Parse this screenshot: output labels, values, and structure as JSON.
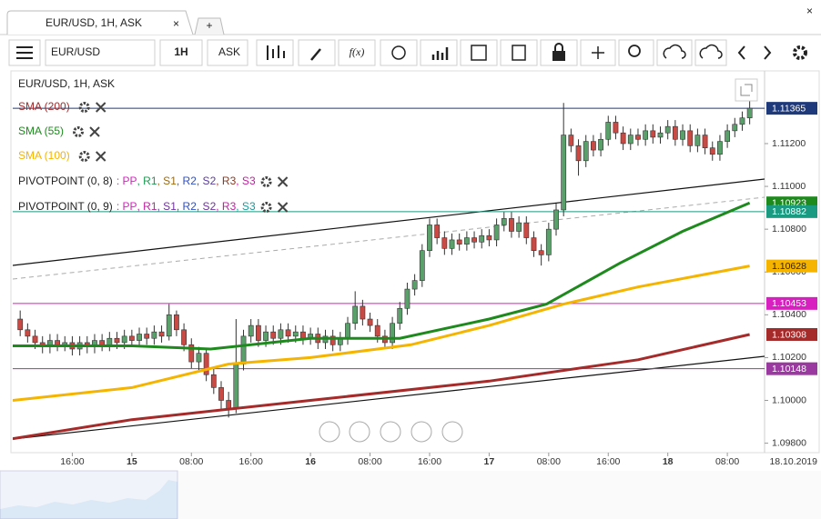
{
  "tab": {
    "title": "EUR/USD, 1H, ASK",
    "add": "+"
  },
  "toolbar": {
    "symbol": "EUR/USD",
    "interval": "1H",
    "price": "ASK",
    "function": "f(x)"
  },
  "chart_data": {
    "type": "candlestick",
    "title": "EUR/USD, 1H, ASK",
    "date_label": "18.10.2019",
    "up_color": "#59a06b",
    "down_color": "#c94a44",
    "xlim": [
      -16,
      85
    ],
    "ylim": [
      1.0976,
      1.1151
    ],
    "xticks": [
      {
        "value": -8,
        "label": "16:00"
      },
      {
        "value": 0,
        "label": "15"
      },
      {
        "value": 8,
        "label": "08:00"
      },
      {
        "value": 16,
        "label": "16:00"
      },
      {
        "value": 24,
        "label": "16"
      },
      {
        "value": 32,
        "label": "08:00"
      },
      {
        "value": 40,
        "label": "16:00"
      },
      {
        "value": 48,
        "label": "17"
      },
      {
        "value": 56,
        "label": "08:00"
      },
      {
        "value": 64,
        "label": "16:00"
      },
      {
        "value": 72,
        "label": "18"
      },
      {
        "value": 80,
        "label": "08:00"
      }
    ],
    "yticks": [
      {
        "value": 1.098,
        "label": "1.09800"
      },
      {
        "value": 1.1,
        "label": "1.10000"
      },
      {
        "value": 1.102,
        "label": "1.10200"
      },
      {
        "value": 1.104,
        "label": "1.10400"
      },
      {
        "value": 1.106,
        "label": "1.10600"
      },
      {
        "value": 1.108,
        "label": "1.10800"
      },
      {
        "value": 1.11,
        "label": "1.11000"
      },
      {
        "value": 1.112,
        "label": "1.11200"
      }
    ],
    "grid": false,
    "x": [
      -15,
      -14,
      -13,
      -12,
      -11,
      -10,
      -9,
      -8,
      -7,
      -6,
      -5,
      -4,
      -3,
      -2,
      -1,
      0,
      1,
      2,
      3,
      4,
      5,
      6,
      7,
      8,
      9,
      10,
      11,
      12,
      13,
      14,
      15,
      16,
      17,
      18,
      19,
      20,
      21,
      22,
      23,
      24,
      25,
      26,
      27,
      28,
      29,
      30,
      31,
      32,
      33,
      34,
      35,
      36,
      37,
      38,
      39,
      40,
      41,
      42,
      43,
      44,
      45,
      46,
      47,
      48,
      49,
      50,
      51,
      52,
      53,
      54,
      55,
      56,
      57,
      58,
      59,
      60,
      61,
      62,
      63,
      64,
      65,
      66,
      67,
      68,
      69,
      70,
      71,
      72,
      73,
      74,
      75,
      76,
      77,
      78,
      79,
      80,
      81,
      82,
      83
    ],
    "open": [
      1.1038,
      1.1033,
      1.103,
      1.1027,
      1.1025,
      1.1028,
      1.1026,
      1.1027,
      1.1024,
      1.1027,
      1.1025,
      1.1028,
      1.1026,
      1.1029,
      1.1027,
      1.103,
      1.1028,
      1.1031,
      1.1029,
      1.1032,
      1.103,
      1.104,
      1.1033,
      1.1026,
      1.1018,
      1.1022,
      1.1012,
      1.1006,
      1.1,
      1.0996,
      1.1017,
      1.103,
      1.1035,
      1.1028,
      1.1032,
      1.1029,
      1.1033,
      1.103,
      1.1032,
      1.1029,
      1.1031,
      1.1027,
      1.103,
      1.1026,
      1.1029,
      1.1036,
      1.1044,
      1.1038,
      1.1035,
      1.103,
      1.1027,
      1.1036,
      1.1043,
      1.1052,
      1.1056,
      1.107,
      1.1082,
      1.1076,
      1.1071,
      1.1075,
      1.1073,
      1.1076,
      1.1074,
      1.1077,
      1.1075,
      1.1082,
      1.1085,
      1.1079,
      1.1083,
      1.1076,
      1.107,
      1.1068,
      1.108,
      1.1089,
      1.1124,
      1.1119,
      1.1112,
      1.1121,
      1.1117,
      1.1122,
      1.113,
      1.1125,
      1.112,
      1.1124,
      1.1122,
      1.1126,
      1.1123,
      1.1125,
      1.1128,
      1.1122,
      1.1126,
      1.1119,
      1.1124,
      1.1118,
      1.1115,
      1.1121,
      1.1126,
      1.1129,
      1.1132
    ],
    "high": [
      1.1042,
      1.1036,
      1.1033,
      1.103,
      1.1031,
      1.1031,
      1.103,
      1.103,
      1.103,
      1.103,
      1.1031,
      1.1031,
      1.1032,
      1.1032,
      1.1033,
      1.1033,
      1.1034,
      1.1034,
      1.1035,
      1.1035,
      1.1045,
      1.1042,
      1.1036,
      1.1029,
      1.1025,
      1.1024,
      1.1015,
      1.1009,
      1.1004,
      1.1038,
      1.1033,
      1.1038,
      1.1038,
      1.1035,
      1.1035,
      1.1036,
      1.1036,
      1.1035,
      1.1035,
      1.1034,
      1.1034,
      1.1033,
      1.1033,
      1.1032,
      1.1039,
      1.1051,
      1.1047,
      1.1041,
      1.1038,
      1.1033,
      1.1039,
      1.1046,
      1.1055,
      1.1059,
      1.1073,
      1.1085,
      1.1085,
      1.1079,
      1.1078,
      1.1078,
      1.1079,
      1.1079,
      1.108,
      1.108,
      1.1085,
      1.1088,
      1.1088,
      1.1086,
      1.1086,
      1.1079,
      1.1073,
      1.1083,
      1.1092,
      1.1139,
      1.1127,
      1.1122,
      1.1124,
      1.1124,
      1.1125,
      1.1133,
      1.1133,
      1.1128,
      1.1127,
      1.1127,
      1.1129,
      1.1129,
      1.1128,
      1.1131,
      1.1131,
      1.1129,
      1.1129,
      1.1127,
      1.1127,
      1.1121,
      1.1124,
      1.1129,
      1.1132,
      1.1135,
      1.114
    ],
    "low": [
      1.103,
      1.1027,
      1.1024,
      1.1022,
      1.1022,
      1.1023,
      1.1023,
      1.1021,
      1.1021,
      1.1022,
      1.1022,
      1.1023,
      1.1023,
      1.1024,
      1.1024,
      1.1025,
      1.1025,
      1.1026,
      1.1026,
      1.1027,
      1.1028,
      1.103,
      1.1023,
      1.1015,
      1.1014,
      1.1009,
      1.1003,
      1.0996,
      1.0992,
      1.0994,
      1.1014,
      1.1027,
      1.1025,
      1.1025,
      1.1026,
      1.1026,
      1.1027,
      1.1027,
      1.1026,
      1.1026,
      1.1024,
      1.1024,
      1.1023,
      1.1023,
      1.1026,
      1.1033,
      1.1035,
      1.1032,
      1.1027,
      1.1024,
      1.1024,
      1.1033,
      1.104,
      1.1049,
      1.1053,
      1.1067,
      1.1073,
      1.1068,
      1.1068,
      1.107,
      1.107,
      1.1071,
      1.1071,
      1.1072,
      1.1072,
      1.1079,
      1.1076,
      1.1076,
      1.1073,
      1.1067,
      1.1063,
      1.1065,
      1.1077,
      1.1086,
      1.1116,
      1.1105,
      1.1109,
      1.1114,
      1.1114,
      1.1119,
      1.1122,
      1.1117,
      1.1117,
      1.1119,
      1.1119,
      1.112,
      1.112,
      1.1122,
      1.1119,
      1.1119,
      1.1116,
      1.1116,
      1.1115,
      1.1112,
      1.1112,
      1.1118,
      1.1123,
      1.1126,
      1.1129
    ],
    "close": [
      1.1033,
      1.103,
      1.1027,
      1.1025,
      1.1028,
      1.1026,
      1.1027,
      1.1024,
      1.1027,
      1.1025,
      1.1028,
      1.1026,
      1.1029,
      1.1027,
      1.103,
      1.1028,
      1.1031,
      1.1029,
      1.1032,
      1.103,
      1.104,
      1.1033,
      1.1026,
      1.1018,
      1.1022,
      1.1012,
      1.1006,
      1.1,
      1.0996,
      1.1017,
      1.103,
      1.1035,
      1.1028,
      1.1032,
      1.1029,
      1.1033,
      1.103,
      1.1032,
      1.1029,
      1.1031,
      1.1027,
      1.103,
      1.1026,
      1.1029,
      1.1036,
      1.1044,
      1.1038,
      1.1035,
      1.103,
      1.1027,
      1.1036,
      1.1043,
      1.1052,
      1.1056,
      1.107,
      1.1082,
      1.1076,
      1.1071,
      1.1075,
      1.1073,
      1.1076,
      1.1074,
      1.1077,
      1.1075,
      1.1082,
      1.1085,
      1.1079,
      1.1083,
      1.1076,
      1.107,
      1.1068,
      1.108,
      1.1089,
      1.1124,
      1.1119,
      1.1112,
      1.1121,
      1.1117,
      1.1122,
      1.113,
      1.1125,
      1.112,
      1.1124,
      1.1122,
      1.1126,
      1.1123,
      1.1125,
      1.1128,
      1.1122,
      1.1126,
      1.1119,
      1.1124,
      1.1118,
      1.1115,
      1.1121,
      1.1126,
      1.1129,
      1.1132,
      1.11365
    ],
    "series": [
      {
        "name": "SMA (200)",
        "color": "#a52a2a",
        "x": [
          -16,
          0,
          24,
          48,
          68,
          83
        ],
        "values": [
          1.09821,
          1.0991,
          1.1,
          1.1009,
          1.1019,
          1.10308
        ]
      },
      {
        "name": "SMA (55)",
        "color": "#1e8a1e",
        "x": [
          -16,
          0,
          10.6,
          24,
          36,
          48,
          55.7,
          65.5,
          74,
          83
        ],
        "values": [
          1.10255,
          1.10255,
          1.1024,
          1.1029,
          1.1029,
          1.1038,
          1.1045,
          1.1064,
          1.1079,
          1.10923
        ]
      },
      {
        "name": "SMA (100)",
        "color": "#f5b400",
        "x": [
          -16,
          0,
          13,
          24,
          37.5,
          48,
          58,
          68,
          83
        ],
        "values": [
          1.1,
          1.1006,
          1.1017,
          1.102,
          1.1026,
          1.1035,
          1.1045,
          1.1053,
          1.10628
        ]
      }
    ],
    "pivots": [
      {
        "name": "PIVOTPOINT (0, 8)",
        "parts": [
          {
            "text": ": PP",
            "color": "#d81fc0"
          },
          {
            "text": ", R1",
            "color": "#1a9a50"
          },
          {
            "text": ", S1",
            "color": "#9a6a10"
          },
          {
            "text": ", R2",
            "color": "#3050c0"
          },
          {
            "text": ", S2",
            "color": "#5a3aa0"
          },
          {
            "text": ", R3",
            "color": "#8a3a20"
          },
          {
            "text": ", S3",
            "color": "#c020a0"
          }
        ]
      },
      {
        "name": "PIVOTPOINT (0, 9)",
        "parts": [
          {
            "text": ": PP",
            "color": "#d81fc0"
          },
          {
            "text": ", R1",
            "color": "#c020a0"
          },
          {
            "text": ", S1",
            "color": "#7030a0"
          },
          {
            "text": ", R2",
            "color": "#3050c0"
          },
          {
            "text": ", S2",
            "color": "#7030a0"
          },
          {
            "text": ", R3",
            "color": "#c020a0"
          },
          {
            "text": ", S3",
            "color": "#1a9a9a"
          }
        ]
      }
    ],
    "price_labels": [
      {
        "value": 1.11365,
        "color": "#1f3a7a",
        "text_color": "#fff",
        "line": true
      },
      {
        "value": 1.10923,
        "color": "#1e8a1e",
        "text_color": "#fff",
        "line": false
      },
      {
        "value": 1.10882,
        "color": "#1a9a80",
        "text_color": "#fff",
        "line": true
      },
      {
        "value": 1.10628,
        "color": "#f5b400",
        "text_color": "#222",
        "line": false
      },
      {
        "value": 1.10453,
        "color": "#d81fc0",
        "text_color": "#fff",
        "line": true
      },
      {
        "value": 1.10308,
        "color": "#a52a2a",
        "text_color": "#fff",
        "line": false
      },
      {
        "value": 1.10148,
        "color": "#9a3aa0",
        "text_color": "#fff",
        "line": true
      }
    ]
  }
}
